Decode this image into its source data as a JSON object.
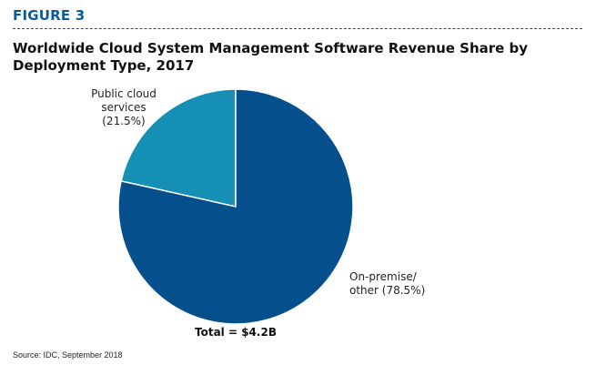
{
  "figure_label": "FIGURE 3",
  "source": "Source: IDC, September 2018",
  "chart_data": {
    "type": "pie",
    "title": "Worldwide Cloud System Management Software Revenue Share by Deployment Type, 2017",
    "total_label": "Total = $4.2B",
    "slices": [
      {
        "label_lines": [
          "Public cloud",
          "services",
          "(21.5%)"
        ],
        "value": 21.5,
        "color": "#1590b4"
      },
      {
        "label_lines": [
          "On-premise/",
          "other (78.5%)"
        ],
        "value": 78.5,
        "color": "#064f8d"
      }
    ]
  }
}
